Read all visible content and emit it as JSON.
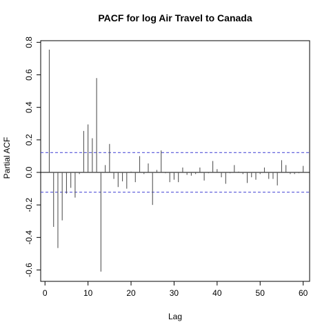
{
  "chart_data": {
    "type": "bar",
    "title": "PACF for log Air Travel to Canada",
    "xlabel": "Lag",
    "ylabel": "Partial ACF",
    "xlim": [
      -1,
      61.5
    ],
    "ylim": [
      -0.67,
      0.81
    ],
    "x_ticks": [
      0,
      10,
      20,
      30,
      40,
      50,
      60
    ],
    "y_ticks": [
      -0.6,
      -0.4,
      -0.2,
      0.0,
      0.2,
      0.4,
      0.6,
      0.8
    ],
    "x_tick_labels": [
      "0",
      "10",
      "20",
      "30",
      "40",
      "50",
      "60"
    ],
    "y_tick_labels": [
      "-0.6",
      "-0.4",
      "-0.2",
      "0.0",
      "0.2",
      "0.4",
      "0.6",
      "0.8"
    ],
    "confidence_bounds": [
      0.122,
      -0.122
    ],
    "colors": {
      "bars": "#555555",
      "bounds": "#3a3ad4",
      "axes": "#000000"
    },
    "lags": [
      1,
      2,
      3,
      4,
      5,
      6,
      7,
      8,
      9,
      10,
      11,
      12,
      13,
      14,
      15,
      16,
      17,
      18,
      19,
      20,
      21,
      22,
      23,
      24,
      25,
      26,
      27,
      28,
      29,
      30,
      31,
      32,
      33,
      34,
      35,
      36,
      37,
      38,
      39,
      40,
      41,
      42,
      43,
      44,
      45,
      46,
      47,
      48,
      49,
      50,
      51,
      52,
      53,
      54,
      55,
      56,
      57,
      58,
      59,
      60
    ],
    "values": [
      0.755,
      -0.335,
      -0.465,
      -0.295,
      -0.13,
      -0.095,
      -0.155,
      -0.01,
      0.255,
      0.295,
      0.21,
      0.58,
      -0.61,
      0.045,
      0.175,
      -0.04,
      -0.09,
      -0.055,
      -0.1,
      0.005,
      -0.06,
      0.1,
      -0.01,
      0.055,
      -0.2,
      0.015,
      0.135,
      -0.005,
      -0.06,
      -0.045,
      -0.06,
      0.03,
      -0.015,
      -0.02,
      -0.01,
      0.03,
      -0.05,
      -0.005,
      0.07,
      0.02,
      -0.03,
      -0.07,
      -0.005,
      0.045,
      0.005,
      -0.01,
      -0.065,
      -0.03,
      -0.045,
      -0.01,
      0.03,
      -0.04,
      -0.04,
      -0.08,
      0.075,
      0.045,
      -0.01,
      -0.01,
      -0.005,
      0.04
    ]
  }
}
